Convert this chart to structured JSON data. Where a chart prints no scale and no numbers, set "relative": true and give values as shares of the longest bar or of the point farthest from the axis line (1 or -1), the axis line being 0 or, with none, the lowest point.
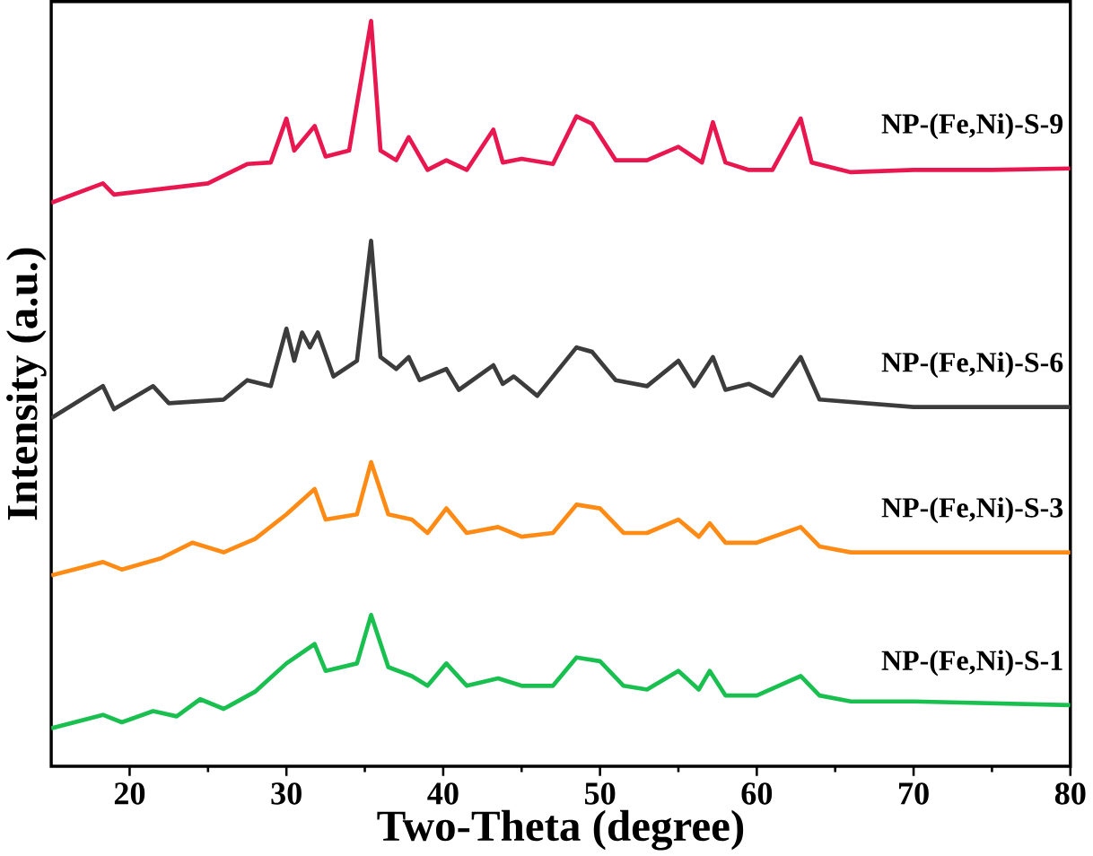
{
  "chart_data": {
    "type": "line",
    "xlabel": "Two-Theta (degree)",
    "ylabel": "Intensity (a.u.)",
    "relative": true,
    "xlim": [
      15,
      80
    ],
    "xticks": [
      20,
      30,
      40,
      50,
      60,
      70,
      80
    ],
    "legend": false,
    "grid": false,
    "marker": "none",
    "line_style": "solid",
    "series": [
      {
        "name": "NP-(Fe,Ni)-S-9",
        "color": "#e8174f",
        "x": [
          15,
          18.3,
          19,
          25,
          27.5,
          29,
          30,
          30.5,
          31.8,
          32.5,
          34,
          35.4,
          36,
          37,
          37.8,
          39,
          40.2,
          41.5,
          43.2,
          43.8,
          45,
          47,
          48.5,
          49.5,
          51,
          53,
          55,
          56.5,
          57.2,
          58,
          59.5,
          61,
          62.8,
          63.5,
          66,
          70,
          75,
          80
        ],
        "values": [
          0.756,
          0.782,
          0.767,
          0.782,
          0.808,
          0.81,
          0.869,
          0.826,
          0.859,
          0.818,
          0.826,
          1.0,
          0.826,
          0.813,
          0.844,
          0.8,
          0.813,
          0.8,
          0.854,
          0.81,
          0.815,
          0.808,
          0.872,
          0.862,
          0.813,
          0.813,
          0.831,
          0.81,
          0.864,
          0.81,
          0.8,
          0.8,
          0.869,
          0.81,
          0.797,
          0.8,
          0.8,
          0.802
        ]
      },
      {
        "name": "NP-(Fe,Ni)-S-6",
        "color": "#3c3c3c",
        "x": [
          15,
          18.3,
          19,
          21.5,
          22.5,
          26,
          27.5,
          29,
          30,
          30.5,
          31,
          31.5,
          32,
          33,
          34.5,
          35.4,
          36,
          37,
          37.8,
          38.5,
          40.2,
          41,
          43.2,
          43.8,
          44.5,
          46,
          48.5,
          49.5,
          51,
          53,
          55,
          56,
          57.2,
          58,
          59.5,
          61,
          62.8,
          64,
          70,
          80
        ],
        "values": [
          0.467,
          0.51,
          0.479,
          0.51,
          0.487,
          0.492,
          0.518,
          0.51,
          0.587,
          0.544,
          0.582,
          0.562,
          0.582,
          0.523,
          0.544,
          0.705,
          0.549,
          0.533,
          0.549,
          0.518,
          0.533,
          0.505,
          0.538,
          0.513,
          0.523,
          0.497,
          0.562,
          0.556,
          0.518,
          0.51,
          0.544,
          0.51,
          0.549,
          0.505,
          0.513,
          0.497,
          0.549,
          0.492,
          0.482,
          0.482
        ]
      },
      {
        "name": "NP-(Fe,Ni)-S-3",
        "color": "#ff8a14",
        "x": [
          15,
          18.3,
          19.5,
          22,
          24,
          26,
          28,
          30,
          31.8,
          32.5,
          34.5,
          35.4,
          36.5,
          38,
          39,
          40.2,
          41.5,
          43.5,
          45,
          47,
          48.5,
          50,
          51.5,
          53,
          55,
          56.3,
          57,
          58,
          60,
          62.8,
          64,
          66,
          70,
          80
        ],
        "values": [
          0.256,
          0.274,
          0.264,
          0.279,
          0.3,
          0.287,
          0.305,
          0.338,
          0.372,
          0.331,
          0.338,
          0.408,
          0.338,
          0.331,
          0.313,
          0.346,
          0.313,
          0.321,
          0.308,
          0.313,
          0.351,
          0.346,
          0.313,
          0.313,
          0.331,
          0.308,
          0.326,
          0.3,
          0.3,
          0.321,
          0.295,
          0.287,
          0.287,
          0.287
        ]
      },
      {
        "name": "NP-(Fe,Ni)-S-1",
        "color": "#19c050",
        "x": [
          15,
          18.3,
          19.5,
          21.5,
          23,
          24.5,
          26,
          28,
          30,
          31.8,
          32.5,
          34.5,
          35.4,
          36.5,
          38,
          39,
          40.2,
          41.5,
          43.5,
          45,
          47,
          48.5,
          50,
          51.5,
          53,
          55,
          56.3,
          57,
          58,
          60,
          62.8,
          64,
          66,
          70,
          80
        ],
        "values": [
          0.051,
          0.069,
          0.059,
          0.074,
          0.067,
          0.09,
          0.077,
          0.1,
          0.138,
          0.164,
          0.128,
          0.138,
          0.203,
          0.133,
          0.121,
          0.108,
          0.138,
          0.108,
          0.118,
          0.108,
          0.108,
          0.146,
          0.141,
          0.108,
          0.103,
          0.128,
          0.103,
          0.128,
          0.095,
          0.095,
          0.121,
          0.095,
          0.087,
          0.087,
          0.082
        ]
      }
    ]
  }
}
